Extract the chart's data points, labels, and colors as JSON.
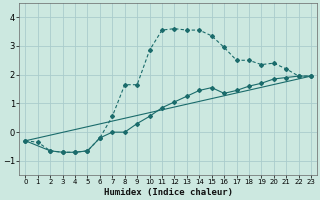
{
  "xlabel": "Humidex (Indice chaleur)",
  "background_color": "#cce8e0",
  "grid_color": "#aacccc",
  "line_color": "#1a6b6b",
  "xlim": [
    -0.5,
    23.5
  ],
  "ylim": [
    -1.5,
    4.5
  ],
  "xticks": [
    0,
    1,
    2,
    3,
    4,
    5,
    6,
    7,
    8,
    9,
    10,
    11,
    12,
    13,
    14,
    15,
    16,
    17,
    18,
    19,
    20,
    21,
    22,
    23
  ],
  "yticks": [
    -1,
    0,
    1,
    2,
    3,
    4
  ],
  "line1_x": [
    0,
    1,
    2,
    3,
    4,
    5,
    6,
    7,
    8,
    9,
    10,
    11,
    12,
    13,
    14,
    15,
    16,
    17,
    18,
    19,
    20,
    21,
    22,
    23
  ],
  "line1_y": [
    -0.3,
    -0.35,
    -0.65,
    -0.7,
    -0.7,
    -0.65,
    -0.2,
    0.55,
    1.65,
    1.65,
    2.85,
    3.55,
    3.6,
    3.55,
    3.55,
    3.35,
    2.95,
    2.5,
    2.5,
    2.35,
    2.4,
    2.2,
    1.95,
    1.95
  ],
  "line2_x": [
    0,
    2,
    3,
    4,
    5,
    6,
    7,
    8,
    9,
    10,
    11,
    12,
    13,
    14,
    15,
    16,
    17,
    18,
    19,
    20,
    21,
    22,
    23
  ],
  "line2_y": [
    -0.3,
    -0.65,
    -0.7,
    -0.7,
    -0.65,
    -0.2,
    0.0,
    0.0,
    0.3,
    0.55,
    0.85,
    1.05,
    1.25,
    1.45,
    1.55,
    1.35,
    1.45,
    1.6,
    1.7,
    1.85,
    1.9,
    1.95,
    1.95
  ],
  "line3_x": [
    0,
    23
  ],
  "line3_y": [
    -0.3,
    1.95
  ]
}
